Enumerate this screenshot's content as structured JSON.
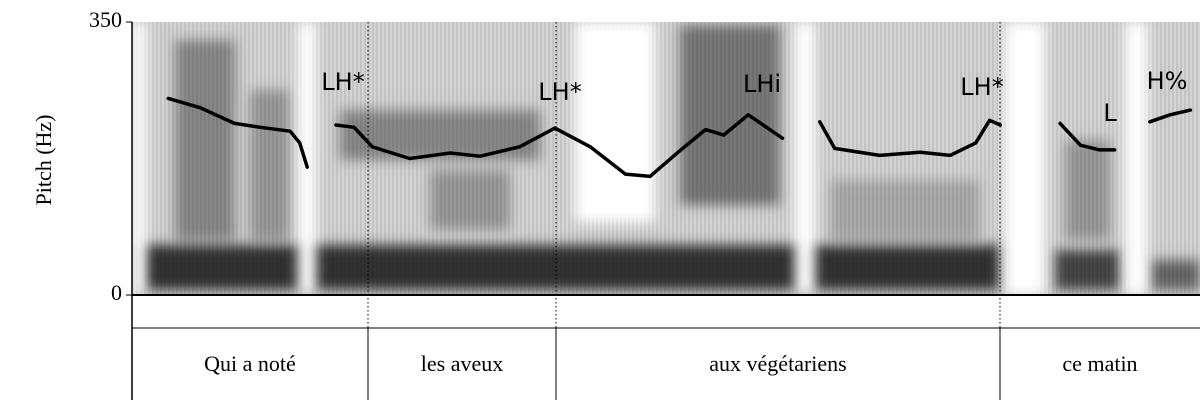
{
  "chart_data": {
    "type": "line",
    "ylabel": "Pitch (Hz)",
    "ylim": [
      0,
      350
    ],
    "yticks": [
      0,
      350
    ],
    "xlim": [
      0,
      100
    ],
    "series": [
      {
        "color": "#000000",
        "x": [
          3.4,
          6.4,
          9.6,
          12.0,
          14.8,
          15.7,
          16.4,
          17,
          19.1,
          20.8,
          22.5,
          26.0,
          29.8,
          32.6,
          36.3,
          39.6,
          42.9,
          46.2,
          48.5,
          51.3,
          53.7,
          55.4,
          57.7,
          60.9,
          62,
          64.4,
          65.8,
          70.0,
          73.8,
          76.6,
          79.0,
          80.3,
          81.3,
          85,
          86.9,
          88.8,
          90.6,
          92.0,
          94,
          95.3,
          97.2,
          99.1
        ],
        "values": [
          252,
          240,
          220,
          215,
          210,
          195,
          164,
          null,
          218,
          215,
          190,
          175,
          182,
          178,
          190,
          214,
          190,
          155,
          152,
          185,
          212,
          205,
          231,
          201,
          null,
          222,
          188,
          179,
          183,
          179,
          195,
          224,
          218,
          null,
          220,
          192,
          186,
          186,
          null,
          222,
          231,
          237
        ]
      }
    ],
    "annotations": [
      "LH*",
      "LH*",
      "LHi",
      "LH*",
      "L",
      "H%"
    ],
    "words": [
      "Qui a noté",
      "les aveux",
      "aux végétariens",
      "ce matin"
    ]
  }
}
